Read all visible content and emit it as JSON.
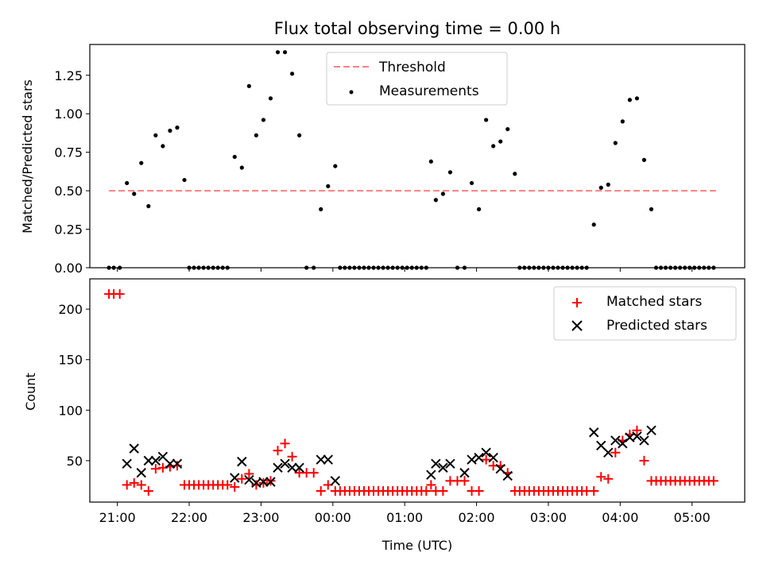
{
  "chart_data": [
    {
      "type": "scatter",
      "title": "Flux total observing time = 0.00 h",
      "xlabel": "",
      "ylabel": "Matched/Predicted stars",
      "xlim": [
        "20:37",
        "05:44"
      ],
      "ylim": [
        0,
        1.45
      ],
      "yticks": [
        "0.00",
        "0.25",
        "0.50",
        "0.75",
        "1.00",
        "1.25"
      ],
      "legend_position": "top-center",
      "threshold": {
        "name": "Threshold",
        "value": 0.5,
        "x_start": "20:53",
        "x_end": "05:20",
        "color": "#ff8080",
        "style": "dashed"
      },
      "series": [
        {
          "name": "Measurements",
          "color": "#000000",
          "x": [
            "20:53",
            "20:57",
            "21:02",
            "21:08",
            "21:14",
            "21:20",
            "21:26",
            "21:32",
            "21:38",
            "21:44",
            "21:50",
            "21:56",
            "22:00",
            "22:04",
            "22:08",
            "22:12",
            "22:16",
            "22:20",
            "22:24",
            "22:28",
            "22:32",
            "22:38",
            "22:44",
            "22:50",
            "22:56",
            "23:02",
            "23:08",
            "23:14",
            "23:20",
            "23:26",
            "23:32",
            "23:38",
            "23:44",
            "23:50",
            "23:56",
            "00:02",
            "00:06",
            "00:10",
            "00:14",
            "00:18",
            "00:22",
            "00:26",
            "00:30",
            "00:34",
            "00:38",
            "00:42",
            "00:46",
            "00:50",
            "00:54",
            "00:58",
            "01:02",
            "01:06",
            "01:10",
            "01:14",
            "01:18",
            "01:22",
            "01:26",
            "01:32",
            "01:38",
            "01:44",
            "01:50",
            "01:56",
            "02:02",
            "02:08",
            "02:14",
            "02:20",
            "02:26",
            "02:32",
            "02:36",
            "02:40",
            "02:44",
            "02:48",
            "02:52",
            "02:56",
            "03:00",
            "03:04",
            "03:08",
            "03:12",
            "03:16",
            "03:20",
            "03:24",
            "03:28",
            "03:32",
            "03:38",
            "03:44",
            "03:50",
            "03:56",
            "04:02",
            "04:08",
            "04:14",
            "04:20",
            "04:26",
            "04:30",
            "04:34",
            "04:38",
            "04:42",
            "04:46",
            "04:50",
            "04:54",
            "04:58",
            "05:02",
            "05:06",
            "05:10",
            "05:14",
            "05:18"
          ],
          "y": [
            0,
            0,
            0,
            0.55,
            0.48,
            0.68,
            0.4,
            0.86,
            0.79,
            0.89,
            0.91,
            0.57,
            0,
            0,
            0,
            0,
            0,
            0,
            0,
            0,
            0,
            0.72,
            0.65,
            1.18,
            0.86,
            0.96,
            1.1,
            1.4,
            1.4,
            1.26,
            0.86,
            0,
            0,
            0.38,
            0.53,
            0.66,
            0,
            0,
            0,
            0,
            0,
            0,
            0,
            0,
            0,
            0,
            0,
            0,
            0,
            0,
            0,
            0,
            0,
            0,
            0,
            0.69,
            0.44,
            0.48,
            0.62,
            0,
            0,
            0.55,
            0.38,
            0.96,
            0.79,
            0.82,
            0.9,
            0.61,
            0,
            0,
            0,
            0,
            0,
            0,
            0,
            0,
            0,
            0,
            0,
            0,
            0,
            0,
            0,
            0.28,
            0.52,
            0.54,
            0.81,
            0.95,
            1.09,
            1.1,
            0.7,
            0.38,
            0,
            0,
            0,
            0,
            0,
            0,
            0,
            0,
            0,
            0,
            0,
            0,
            0
          ]
        }
      ]
    },
    {
      "type": "scatter",
      "title": "",
      "xlabel": "Time (UTC)",
      "ylabel": "Count",
      "xlim": [
        "20:37",
        "05:44"
      ],
      "ylim": [
        9,
        230
      ],
      "xticks": [
        "21:00",
        "22:00",
        "23:00",
        "00:00",
        "01:00",
        "02:00",
        "03:00",
        "04:00",
        "05:00"
      ],
      "yticks": [
        "50",
        "100",
        "150",
        "200"
      ],
      "legend_position": "top-right",
      "series": [
        {
          "name": "Matched stars",
          "marker": "plus",
          "color": "#ff0000",
          "x": [
            "20:53",
            "20:57",
            "21:02",
            "21:08",
            "21:14",
            "21:20",
            "21:26",
            "21:32",
            "21:38",
            "21:44",
            "21:50",
            "21:56",
            "22:00",
            "22:04",
            "22:08",
            "22:12",
            "22:16",
            "22:20",
            "22:24",
            "22:28",
            "22:32",
            "22:38",
            "22:44",
            "22:50",
            "22:56",
            "23:02",
            "23:08",
            "23:14",
            "23:20",
            "23:26",
            "23:32",
            "23:38",
            "23:44",
            "23:50",
            "23:56",
            "00:02",
            "00:06",
            "00:10",
            "00:14",
            "00:18",
            "00:22",
            "00:26",
            "00:30",
            "00:34",
            "00:38",
            "00:42",
            "00:46",
            "00:50",
            "00:54",
            "00:58",
            "01:02",
            "01:06",
            "01:10",
            "01:14",
            "01:18",
            "01:22",
            "01:26",
            "01:32",
            "01:38",
            "01:44",
            "01:50",
            "01:56",
            "02:02",
            "02:08",
            "02:14",
            "02:20",
            "02:26",
            "02:32",
            "02:36",
            "02:40",
            "02:44",
            "02:48",
            "02:52",
            "02:56",
            "03:00",
            "03:04",
            "03:08",
            "03:12",
            "03:16",
            "03:20",
            "03:24",
            "03:28",
            "03:32",
            "03:38",
            "03:44",
            "03:50",
            "03:56",
            "04:02",
            "04:08",
            "04:14",
            "04:20",
            "04:26",
            "04:30",
            "04:34",
            "04:38",
            "04:42",
            "04:46",
            "04:50",
            "04:54",
            "04:58",
            "05:02",
            "05:06",
            "05:10",
            "05:14",
            "05:18"
          ],
          "y": [
            215,
            215,
            215,
            26,
            28,
            26,
            20,
            42,
            43,
            44,
            45,
            26,
            26,
            26,
            26,
            26,
            26,
            26,
            26,
            26,
            26,
            24,
            32,
            37,
            26,
            28,
            30,
            60,
            67,
            54,
            38,
            38,
            38,
            20,
            26,
            20,
            20,
            20,
            20,
            20,
            20,
            20,
            20,
            20,
            20,
            20,
            20,
            20,
            20,
            20,
            20,
            20,
            20,
            20,
            20,
            26,
            20,
            20,
            30,
            30,
            30,
            20,
            20,
            51,
            45,
            45,
            38,
            20,
            20,
            20,
            20,
            20,
            20,
            20,
            20,
            20,
            20,
            20,
            20,
            20,
            20,
            20,
            20,
            20,
            34,
            32,
            58,
            70,
            76,
            80,
            50,
            30,
            30,
            30,
            30,
            30,
            30,
            30,
            30,
            30,
            30,
            30,
            30,
            30,
            30
          ]
        },
        {
          "name": "Predicted stars",
          "marker": "x",
          "color": "#000000",
          "x": [
            "21:08",
            "21:14",
            "21:20",
            "21:26",
            "21:32",
            "21:38",
            "21:44",
            "21:50",
            "22:38",
            "22:44",
            "22:50",
            "22:56",
            "23:02",
            "23:08",
            "23:14",
            "23:20",
            "23:26",
            "23:32",
            "23:50",
            "23:56",
            "00:02",
            "01:22",
            "01:26",
            "01:32",
            "01:38",
            "01:50",
            "01:56",
            "02:02",
            "02:08",
            "02:14",
            "02:20",
            "02:26",
            "03:38",
            "03:44",
            "03:50",
            "03:56",
            "04:02",
            "04:08",
            "04:14",
            "04:20",
            "04:26"
          ],
          "y": [
            47,
            62,
            38,
            50,
            50,
            54,
            47,
            47,
            33,
            49,
            31,
            28,
            29,
            29,
            43,
            47,
            43,
            43,
            51,
            51,
            30,
            36,
            47,
            43,
            47,
            38,
            51,
            53,
            58,
            53,
            42,
            35,
            78,
            65,
            58,
            70,
            67,
            73,
            74,
            70,
            80
          ]
        }
      ]
    }
  ]
}
